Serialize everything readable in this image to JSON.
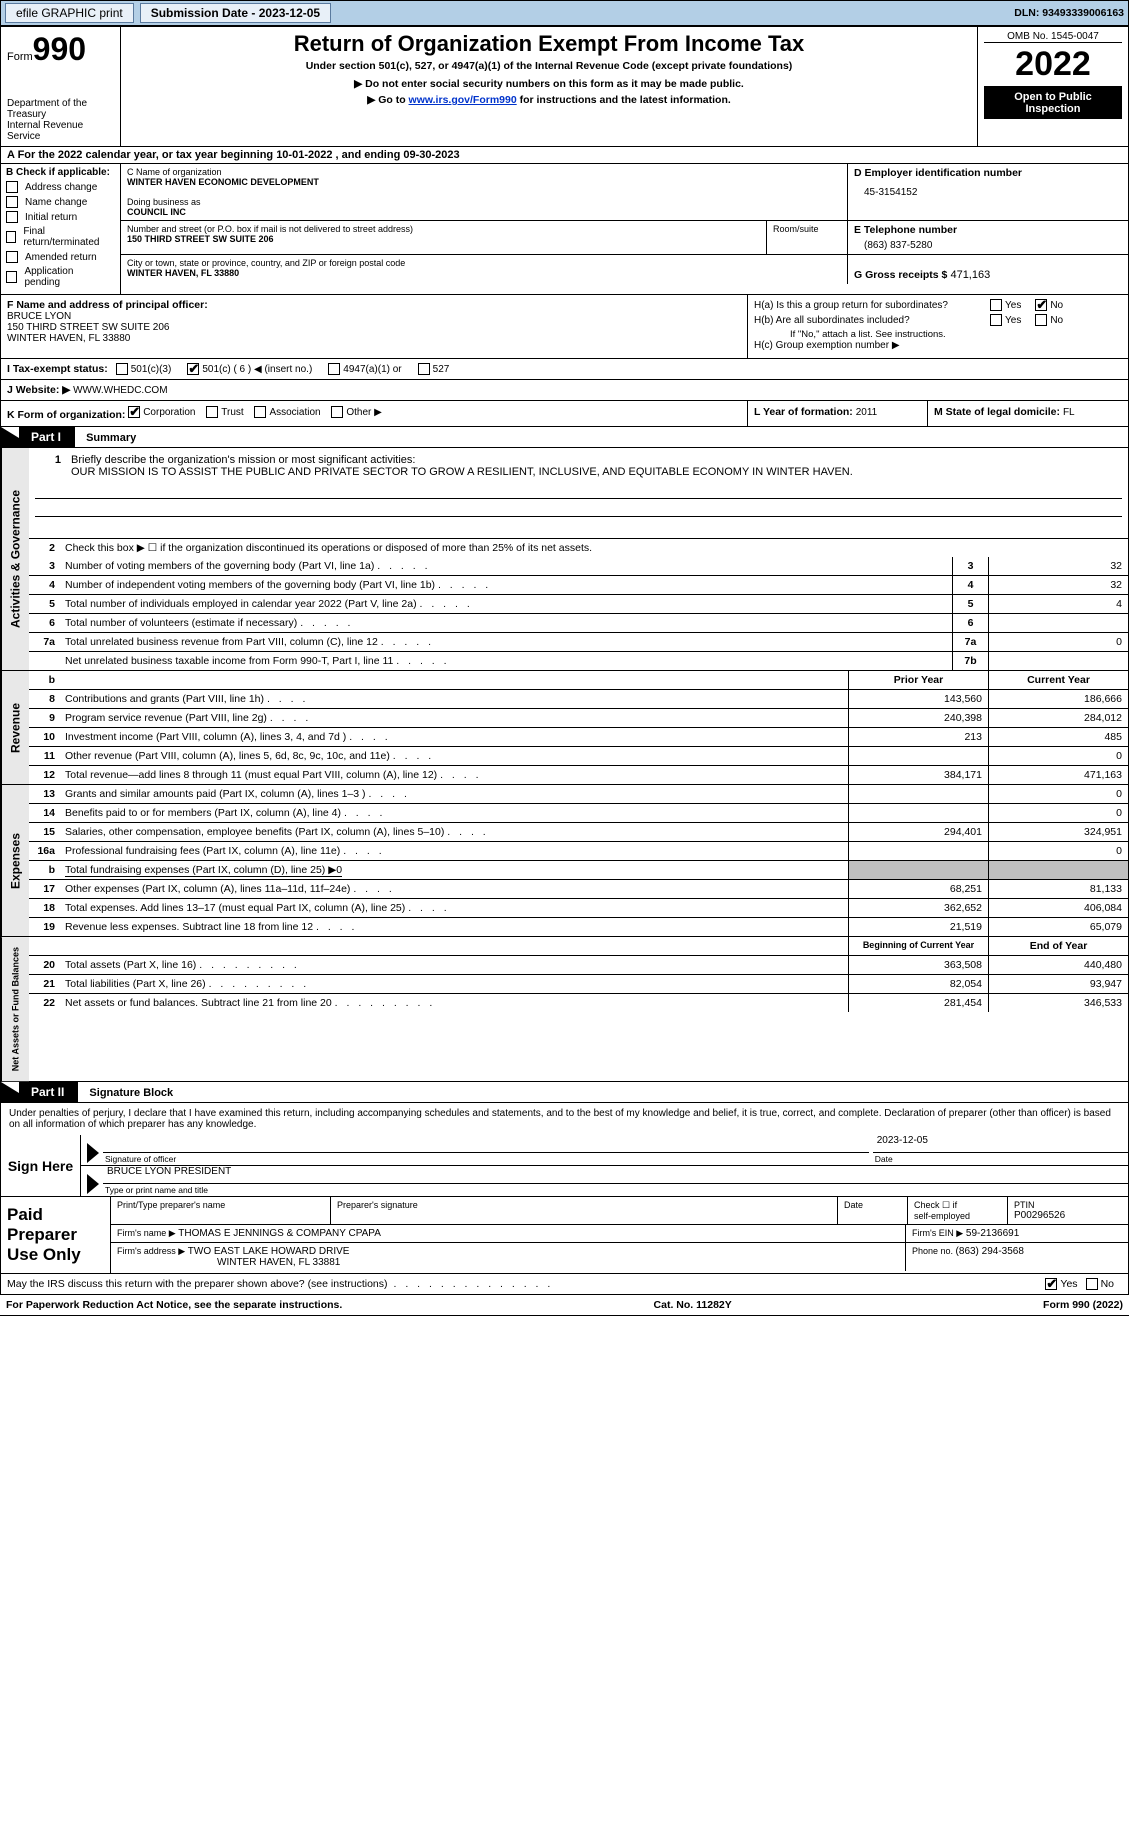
{
  "topbar": {
    "efile_label": "efile GRAPHIC print",
    "submission_label": "Submission Date - 2023-12-05",
    "dln_label": "DLN: 93493339006163"
  },
  "header": {
    "form_word": "Form",
    "form_990": "990",
    "dept": "Department of the Treasury",
    "irs": "Internal Revenue Service",
    "title": "Return of Organization Exempt From Income Tax",
    "subtitle": "Under section 501(c), 527, or 4947(a)(1) of the Internal Revenue Code (except private foundations)",
    "ssn_note": "▶ Do not enter social security numbers on this form as it may be made public.",
    "goto_prefix": "▶ Go to ",
    "goto_link": "www.irs.gov/Form990",
    "goto_suffix": " for instructions and the latest information.",
    "omb": "OMB No. 1545-0047",
    "year": "2022",
    "open": "Open to Public Inspection"
  },
  "rowA": "A For the 2022 calendar year, or tax year beginning 10-01-2022   , and ending 09-30-2023",
  "colB": {
    "label": "B Check if applicable:",
    "items": [
      "Address change",
      "Name change",
      "Initial return",
      "Final return/terminated",
      "Amended return",
      "Application pending"
    ]
  },
  "org": {
    "c_label": "C Name of organization",
    "name": "WINTER HAVEN ECONOMIC DEVELOPMENT",
    "dba_lbl": "Doing business as",
    "dba": "COUNCIL INC",
    "street_lbl": "Number and street (or P.O. box if mail is not delivered to street address)",
    "room_lbl": "Room/suite",
    "street": "150 THIRD STREET SW SUITE 206",
    "city_lbl": "City or town, state or province, country, and ZIP or foreign postal code",
    "city": "WINTER HAVEN, FL  33880",
    "d_lbl": "D Employer identification number",
    "ein": "45-3154152",
    "e_lbl": "E Telephone number",
    "phone": "(863) 837-5280",
    "g_lbl": "G Gross receipts $",
    "gross": "471,163"
  },
  "officer": {
    "f_lbl": "F Name and address of principal officer:",
    "name": "BRUCE LYON",
    "addr1": "150 THIRD STREET SW SUITE 206",
    "addr2": "WINTER HAVEN, FL  33880"
  },
  "h": {
    "ha": "H(a)  Is this a group return for subordinates?",
    "hb": "H(b)  Are all subordinates included?",
    "hb_note": "If \"No,\" attach a list. See instructions.",
    "hc": "H(c)  Group exemption number ▶",
    "yes": "Yes",
    "no": "No"
  },
  "taxexempt": {
    "i_lbl": "I    Tax-exempt status:",
    "c501c3": "501(c)(3)",
    "c501c": "501(c) ( 6 ) ◀ (insert no.)",
    "c4947": "4947(a)(1) or",
    "c527": "527"
  },
  "website": {
    "j_lbl": "J   Website: ▶",
    "val": "WWW.WHEDC.COM"
  },
  "rowK": {
    "k_lbl": "K Form of organization:",
    "corp": "Corporation",
    "trust": "Trust",
    "assoc": "Association",
    "other": "Other ▶",
    "l_lbl": "L Year of formation: ",
    "l_val": "2011",
    "m_lbl": "M State of legal domicile: ",
    "m_val": "FL"
  },
  "part1_title": "Part I",
  "part1_name": "Summary",
  "vtab_act": "Activities & Governance",
  "vtab_rev": "Revenue",
  "vtab_exp": "Expenses",
  "vtab_net": "Net Assets or Fund Balances",
  "p1": {
    "l1_label": "Briefly describe the organization's mission or most significant activities:",
    "mission": "OUR MISSION IS TO ASSIST THE PUBLIC AND PRIVATE SECTOR TO GROW A RESILIENT, INCLUSIVE, AND EQUITABLE ECONOMY IN WINTER HAVEN.",
    "l2": "Check this box ▶ ☐ if the organization discontinued its operations or disposed of more than 25% of its net assets.",
    "rows": [
      {
        "n": "3",
        "t": "Number of voting members of the governing body (Part VI, line 1a)",
        "box": "3",
        "v": "32"
      },
      {
        "n": "4",
        "t": "Number of independent voting members of the governing body (Part VI, line 1b)",
        "box": "4",
        "v": "32"
      },
      {
        "n": "5",
        "t": "Total number of individuals employed in calendar year 2022 (Part V, line 2a)",
        "box": "5",
        "v": "4"
      },
      {
        "n": "6",
        "t": "Total number of volunteers (estimate if necessary)",
        "box": "6",
        "v": ""
      },
      {
        "n": "7a",
        "t": "Total unrelated business revenue from Part VIII, column (C), line 12",
        "box": "7a",
        "v": "0"
      },
      {
        "n": "",
        "t": "Net unrelated business taxable income from Form 990-T, Part I, line 11",
        "box": "7b",
        "v": ""
      }
    ]
  },
  "fin_hdr": {
    "b": "b",
    "prior": "Prior Year",
    "current": "Current Year"
  },
  "revenue": [
    {
      "n": "8",
      "t": "Contributions and grants (Part VIII, line 1h)",
      "p": "143,560",
      "c": "186,666"
    },
    {
      "n": "9",
      "t": "Program service revenue (Part VIII, line 2g)",
      "p": "240,398",
      "c": "284,012"
    },
    {
      "n": "10",
      "t": "Investment income (Part VIII, column (A), lines 3, 4, and 7d )",
      "p": "213",
      "c": "485"
    },
    {
      "n": "11",
      "t": "Other revenue (Part VIII, column (A), lines 5, 6d, 8c, 9c, 10c, and 11e)",
      "p": "",
      "c": "0"
    },
    {
      "n": "12",
      "t": "Total revenue—add lines 8 through 11 (must equal Part VIII, column (A), line 12)",
      "p": "384,171",
      "c": "471,163"
    }
  ],
  "expenses": [
    {
      "n": "13",
      "t": "Grants and similar amounts paid (Part IX, column (A), lines 1–3 )",
      "p": "",
      "c": "0"
    },
    {
      "n": "14",
      "t": "Benefits paid to or for members (Part IX, column (A), line 4)",
      "p": "",
      "c": "0"
    },
    {
      "n": "15",
      "t": "Salaries, other compensation, employee benefits (Part IX, column (A), lines 5–10)",
      "p": "294,401",
      "c": "324,951"
    },
    {
      "n": "16a",
      "t": "Professional fundraising fees (Part IX, column (A), line 11e)",
      "p": "",
      "c": "0"
    },
    {
      "n": "b",
      "t": "Total fundraising expenses (Part IX, column (D), line 25) ▶0",
      "gray": true
    },
    {
      "n": "17",
      "t": "Other expenses (Part IX, column (A), lines 11a–11d, 11f–24e)",
      "p": "68,251",
      "c": "81,133"
    },
    {
      "n": "18",
      "t": "Total expenses. Add lines 13–17 (must equal Part IX, column (A), line 25)",
      "p": "362,652",
      "c": "406,084"
    },
    {
      "n": "19",
      "t": "Revenue less expenses. Subtract line 18 from line 12",
      "p": "21,519",
      "c": "65,079"
    }
  ],
  "net_hdr": {
    "begin": "Beginning of Current Year",
    "end": "End of Year"
  },
  "netassets": [
    {
      "n": "20",
      "t": "Total assets (Part X, line 16)",
      "p": "363,508",
      "c": "440,480"
    },
    {
      "n": "21",
      "t": "Total liabilities (Part X, line 26)",
      "p": "82,054",
      "c": "93,947"
    },
    {
      "n": "22",
      "t": "Net assets or fund balances. Subtract line 21 from line 20",
      "p": "281,454",
      "c": "346,533"
    }
  ],
  "part2_title": "Part II",
  "part2_name": "Signature Block",
  "penalties": "Under penalties of perjury, I declare that I have examined this return, including accompanying schedules and statements, and to the best of my knowledge and belief, it is true, correct, and complete. Declaration of preparer (other than officer) is based on all information of which preparer has any knowledge.",
  "sign": {
    "here": "Sign Here",
    "sig_lbl": "Signature of officer",
    "date_lbl": "Date",
    "date": "2023-12-05",
    "name": "BRUCE LYON  PRESIDENT",
    "name_lbl": "Type or print name and title"
  },
  "prep": {
    "label": "Paid Preparer Use Only",
    "col1": "Print/Type preparer's name",
    "col2": "Preparer's signature",
    "col3": "Date",
    "col4a": "Check ☐ if",
    "col4b": "self-employed",
    "col5_lbl": "PTIN",
    "col5": "P00296526",
    "firm_lbl": "Firm's name      ▶",
    "firm": "THOMAS E JENNINGS & COMPANY CPAPA",
    "ein_lbl": "Firm's EIN ▶",
    "ein": "59-2136691",
    "addr_lbl": "Firm's address ▶",
    "addr1": "TWO EAST LAKE HOWARD DRIVE",
    "addr2": "WINTER HAVEN, FL  33881",
    "phone_lbl": "Phone no. ",
    "phone": "(863) 294-3568"
  },
  "discuss": "May the IRS discuss this return with the preparer shown above? (see instructions)",
  "footer": {
    "left": "For Paperwork Reduction Act Notice, see the separate instructions.",
    "mid": "Cat. No. 11282Y",
    "right": "Form 990 (2022)"
  }
}
